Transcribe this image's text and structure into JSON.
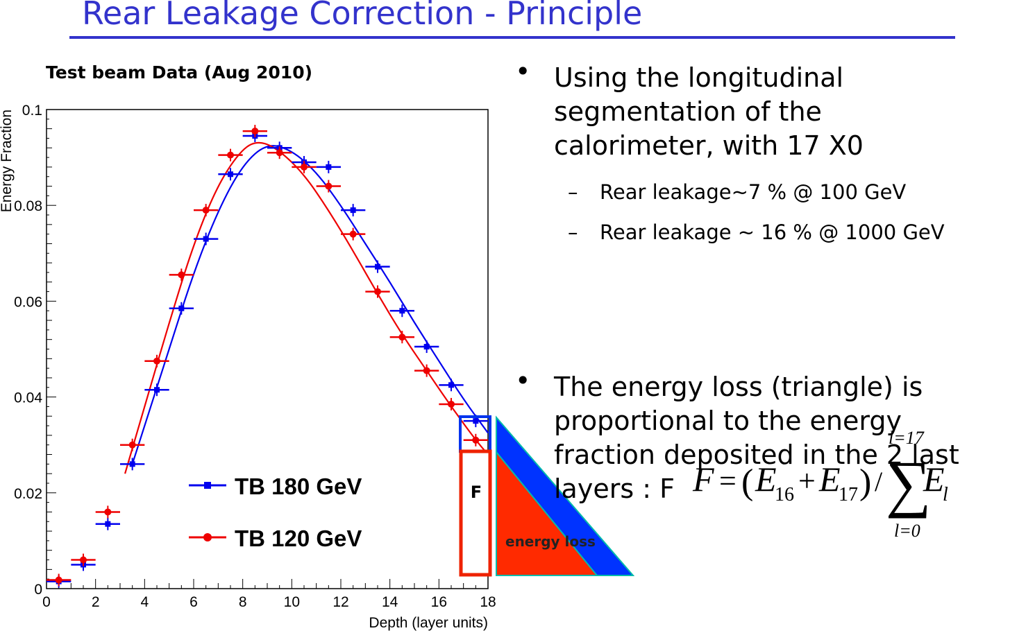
{
  "slide": {
    "title": "Rear Leakage Correction - Principle"
  },
  "bullets": [
    {
      "text": "Using the longitudinal\nsegmentation of the\ncalorimeter, with 17 X0",
      "subitems": [
        "Rear leakage~7 % @ 100 GeV",
        "Rear leakage  ~ 16 % @ 1000 GeV"
      ]
    },
    {
      "text": "The energy loss (triangle) is\nproportional to the energy\nfraction deposited in the 2 last\nlayers : F",
      "subitems": []
    }
  ],
  "bullet_symbol": "•",
  "sub_symbol": "–",
  "formula": {
    "lhs": "F",
    "eq": "=",
    "open": "(",
    "e1": "E",
    "e1_sub": "16",
    "plus": "+",
    "e2": "E",
    "e2_sub": "17",
    "close": ")",
    "slash": "/",
    "sum_top": "l=17",
    "sum_bottom": "l=0",
    "sigma": "∑",
    "el": "E",
    "el_sub": "l"
  },
  "diagram": {
    "box_label": "F",
    "triangle_label": "energy loss",
    "colors": {
      "box_blue": "#0033ee",
      "box_red": "#ee2200",
      "tri_blue": "#0033ff",
      "tri_red": "#ff2a00",
      "tri_edge": "#00bbaa"
    }
  },
  "chart_data": {
    "type": "scatter",
    "title": "Test beam Data (Aug 2010)",
    "xlabel": "Depth (layer units)",
    "ylabel": "Energy Fraction",
    "xlim": [
      0,
      18
    ],
    "ylim": [
      0,
      0.1
    ],
    "x_ticks": [
      "0",
      "2",
      "4",
      "6",
      "8",
      "10",
      "12",
      "14",
      "16",
      "18"
    ],
    "y_ticks": [
      "0",
      "0.02",
      "0.04",
      "0.06",
      "0.08",
      "0.1"
    ],
    "legend_position": "bottom-center",
    "series": [
      {
        "name": "TB 180 GeV",
        "color": "#0000ee",
        "marker": "square",
        "x": [
          0.5,
          1.5,
          2.5,
          3.5,
          4.5,
          5.5,
          6.5,
          7.5,
          8.5,
          9.5,
          10.5,
          11.5,
          12.5,
          13.5,
          14.5,
          15.5,
          16.5,
          17.5
        ],
        "y": [
          0.0015,
          0.005,
          0.0135,
          0.026,
          0.0415,
          0.0585,
          0.073,
          0.0865,
          0.0945,
          0.092,
          0.089,
          0.088,
          0.079,
          0.0672,
          0.058,
          0.0505,
          0.0425,
          0.035
        ],
        "fit": [
          [
            3.5,
            0.026
          ],
          [
            4.0,
            0.034
          ],
          [
            5.0,
            0.05
          ],
          [
            6.0,
            0.066
          ],
          [
            7.0,
            0.079
          ],
          [
            8.0,
            0.0885
          ],
          [
            9.0,
            0.093
          ],
          [
            10.0,
            0.0915
          ],
          [
            11.0,
            0.087
          ],
          [
            12.0,
            0.08
          ],
          [
            13.0,
            0.072
          ],
          [
            14.0,
            0.064
          ],
          [
            15.0,
            0.0555
          ],
          [
            16.0,
            0.0475
          ],
          [
            17.0,
            0.0395
          ],
          [
            18.0,
            0.0325
          ]
        ]
      },
      {
        "name": "TB 120 GeV",
        "color": "#ee0000",
        "marker": "circle",
        "x": [
          0.5,
          1.5,
          2.5,
          3.5,
          4.5,
          5.5,
          6.5,
          7.5,
          8.5,
          9.5,
          10.5,
          11.5,
          12.5,
          13.5,
          14.5,
          15.5,
          16.5,
          17.5
        ],
        "y": [
          0.0018,
          0.006,
          0.016,
          0.03,
          0.0475,
          0.0655,
          0.079,
          0.0905,
          0.0955,
          0.091,
          0.088,
          0.084,
          0.074,
          0.062,
          0.0525,
          0.0455,
          0.0385,
          0.031
        ],
        "fit": [
          [
            3.2,
            0.024
          ],
          [
            4.0,
            0.038
          ],
          [
            5.0,
            0.0555
          ],
          [
            6.0,
            0.072
          ],
          [
            7.0,
            0.0845
          ],
          [
            8.0,
            0.092
          ],
          [
            8.7,
            0.0935
          ],
          [
            9.5,
            0.0915
          ],
          [
            10.5,
            0.0865
          ],
          [
            11.5,
            0.079
          ],
          [
            12.5,
            0.0705
          ],
          [
            13.5,
            0.0615
          ],
          [
            14.5,
            0.053
          ],
          [
            15.5,
            0.0455
          ],
          [
            16.5,
            0.038
          ],
          [
            17.5,
            0.031
          ],
          [
            18.0,
            0.028
          ]
        ]
      }
    ]
  }
}
